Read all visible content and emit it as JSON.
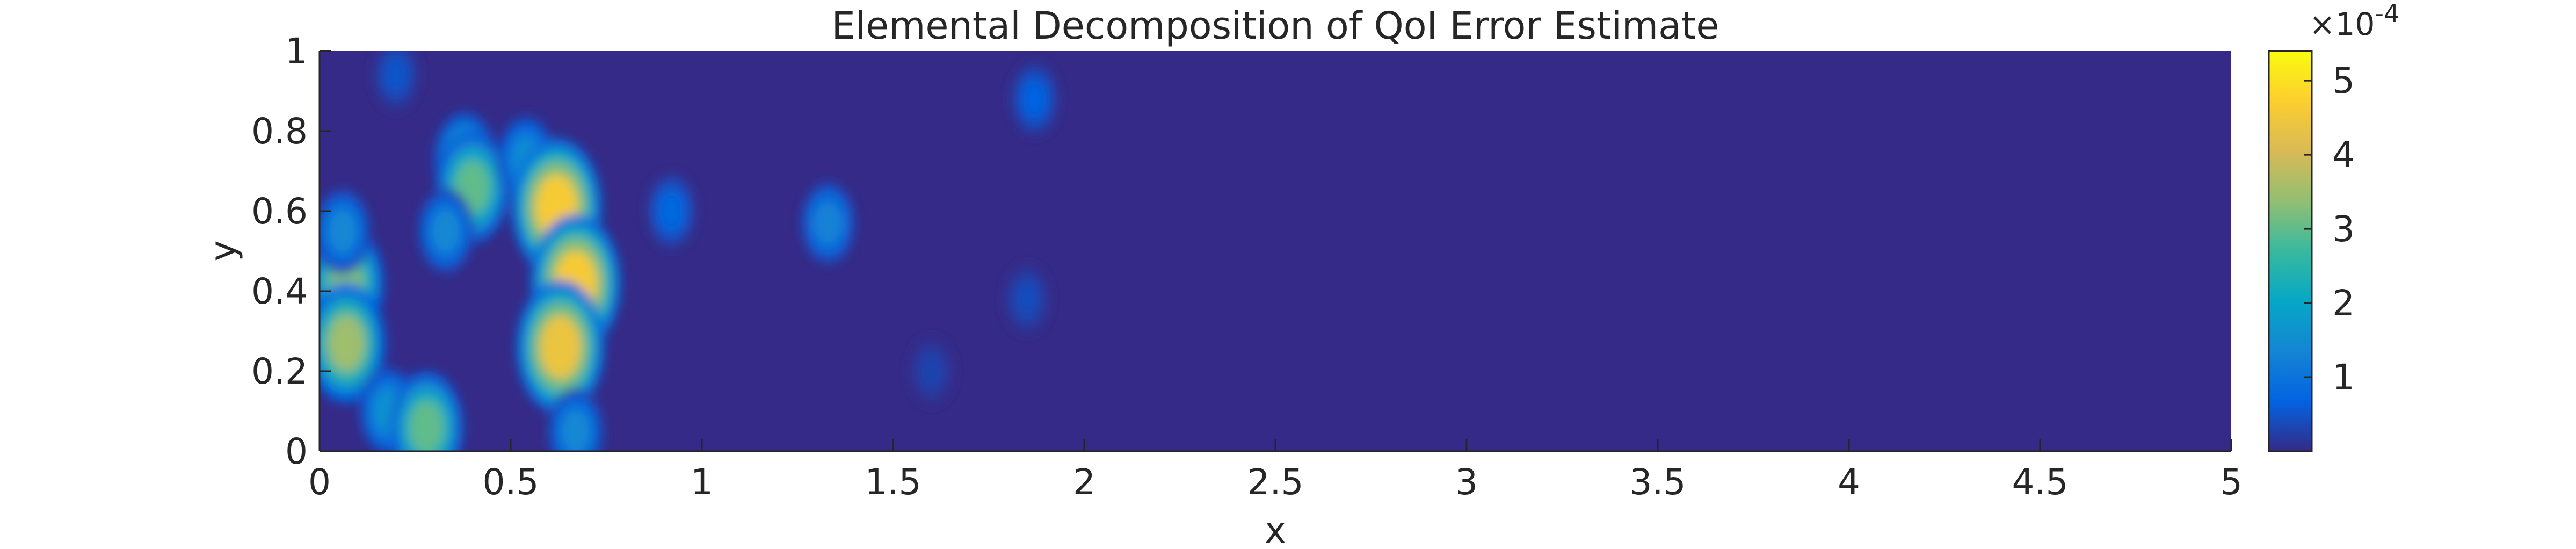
{
  "chart_data": {
    "type": "heatmap",
    "title": "Elemental Decomposition of QoI Error Estimate",
    "xlabel": "x",
    "ylabel": "y",
    "xlim": [
      0,
      5
    ],
    "ylim": [
      0,
      1
    ],
    "x_ticks": [
      "0",
      "0.5",
      "1",
      "1.5",
      "2",
      "2.5",
      "3",
      "3.5",
      "4",
      "4.5",
      "5"
    ],
    "y_ticks": [
      "0",
      "0.2",
      "0.4",
      "0.6",
      "0.8",
      "1"
    ],
    "colorbar": {
      "colormap": "parula",
      "range": [
        0,
        0.00054
      ],
      "ticks": [
        "1",
        "2",
        "3",
        "4",
        "5"
      ],
      "multiplier_base": "×10",
      "multiplier_exponent": "-4"
    },
    "background_value": 0,
    "hotspots": [
      {
        "x": 0.07,
        "y": 0.42,
        "value": 0.00032
      },
      {
        "x": 0.07,
        "y": 0.27,
        "value": 0.00035
      },
      {
        "x": 0.06,
        "y": 0.55,
        "value": 0.00014
      },
      {
        "x": 0.18,
        "y": 0.1,
        "value": 0.00016
      },
      {
        "x": 0.28,
        "y": 0.06,
        "value": 0.0003
      },
      {
        "x": 0.38,
        "y": 0.73,
        "value": 0.0002
      },
      {
        "x": 0.4,
        "y": 0.66,
        "value": 0.0003
      },
      {
        "x": 0.33,
        "y": 0.55,
        "value": 0.00014
      },
      {
        "x": 0.54,
        "y": 0.73,
        "value": 0.00015
      },
      {
        "x": 0.62,
        "y": 0.61,
        "value": 0.00046
      },
      {
        "x": 0.67,
        "y": 0.42,
        "value": 0.00046
      },
      {
        "x": 0.63,
        "y": 0.26,
        "value": 0.00044
      },
      {
        "x": 0.67,
        "y": 0.05,
        "value": 0.00014
      },
      {
        "x": 0.2,
        "y": 0.94,
        "value": 5e-05
      },
      {
        "x": 0.92,
        "y": 0.6,
        "value": 8e-05
      },
      {
        "x": 1.33,
        "y": 0.57,
        "value": 0.00013
      },
      {
        "x": 1.87,
        "y": 0.88,
        "value": 7e-05
      },
      {
        "x": 1.85,
        "y": 0.38,
        "value": 4e-05
      },
      {
        "x": 1.6,
        "y": 0.2,
        "value": 3e-05
      }
    ]
  }
}
